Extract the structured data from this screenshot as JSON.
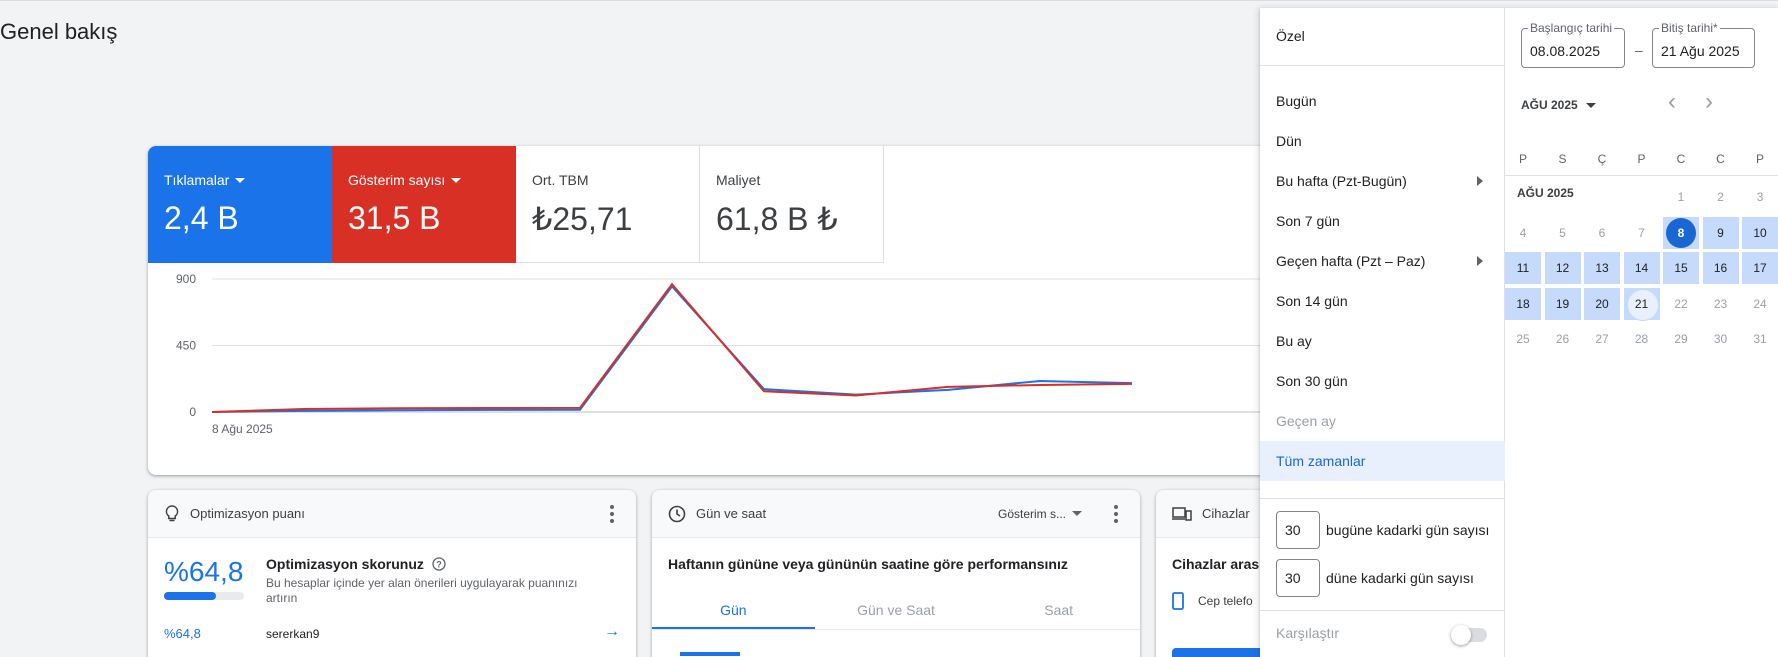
{
  "page": {
    "title": "Genel bakış"
  },
  "metrics": [
    {
      "label": "Tıklamalar",
      "value": "2,4 B",
      "color": "#1a73e8"
    },
    {
      "label": "Gösterim sayısı",
      "value": "31,5 B",
      "color": "#d93025"
    },
    {
      "label": "Ort. TBM",
      "value": "₺25,71"
    },
    {
      "label": "Maliyet",
      "value": "61,8 B ₺"
    }
  ],
  "chart_data": {
    "type": "line",
    "yticks": [
      "900",
      "450",
      "0"
    ],
    "ylim": [
      0,
      900
    ],
    "x_first_label": "8 Ağu 2025",
    "series": [
      {
        "color": "#1a73e8",
        "values": [
          0,
          8,
          12,
          14,
          15,
          850,
          155,
          118,
          150,
          210,
          195
        ]
      },
      {
        "color": "#d93025",
        "values": [
          0,
          20,
          25,
          27,
          28,
          865,
          140,
          112,
          170,
          183,
          190
        ]
      }
    ]
  },
  "cards": {
    "optimization": {
      "header": "Optimizasyon puanı",
      "score": "%64,8",
      "score_fraction": 0.648,
      "title": "Optimizasyon skorunuz",
      "description": "Bu hesaplar içinde yer alan önerileri uygulayarak puanınızı artırın",
      "row_score": "%64,8",
      "row_name": "sererkan9"
    },
    "day_time": {
      "header": "Gün ve saat",
      "dropdown": "Gösterim s...",
      "title": "Haftanın gününe veya gününün saatine göre performansınız",
      "tabs": [
        "Gün",
        "Gün ve Saat",
        "Saat"
      ]
    },
    "devices": {
      "header": "Cihazlar",
      "title": "Cihazlar aras",
      "row": "Cep telefo"
    }
  },
  "picker": {
    "presets": [
      "Özel",
      "Bugün",
      "Dün",
      "Bu hafta (Pzt-Bugün)",
      "Son 7 gün",
      "Geçen hafta (Pzt – Paz)",
      "Son 14 gün",
      "Bu ay",
      "Son 30 gün",
      "Geçen ay",
      "Tüm zamanlar"
    ],
    "days_to_today": {
      "value": "30",
      "label": "bugüne kadarki gün sayısı"
    },
    "days_to_yesterday": {
      "value": "30",
      "label": "düne kadarki gün sayısı"
    },
    "compare_label": "Karşılaştır",
    "start_label": "Başlangıç tarihi",
    "start_value": "08.08.2025",
    "end_label": "Bitiş tarihi*",
    "end_value": "21 Ağu 2025",
    "dash": "–",
    "month_select": "AĞU 2025",
    "weekdays": [
      "P",
      "S",
      "Ç",
      "P",
      "C",
      "C",
      "P"
    ],
    "month_label": "AĞU 2025",
    "nav_prev": "‹",
    "nav_next": "›"
  }
}
